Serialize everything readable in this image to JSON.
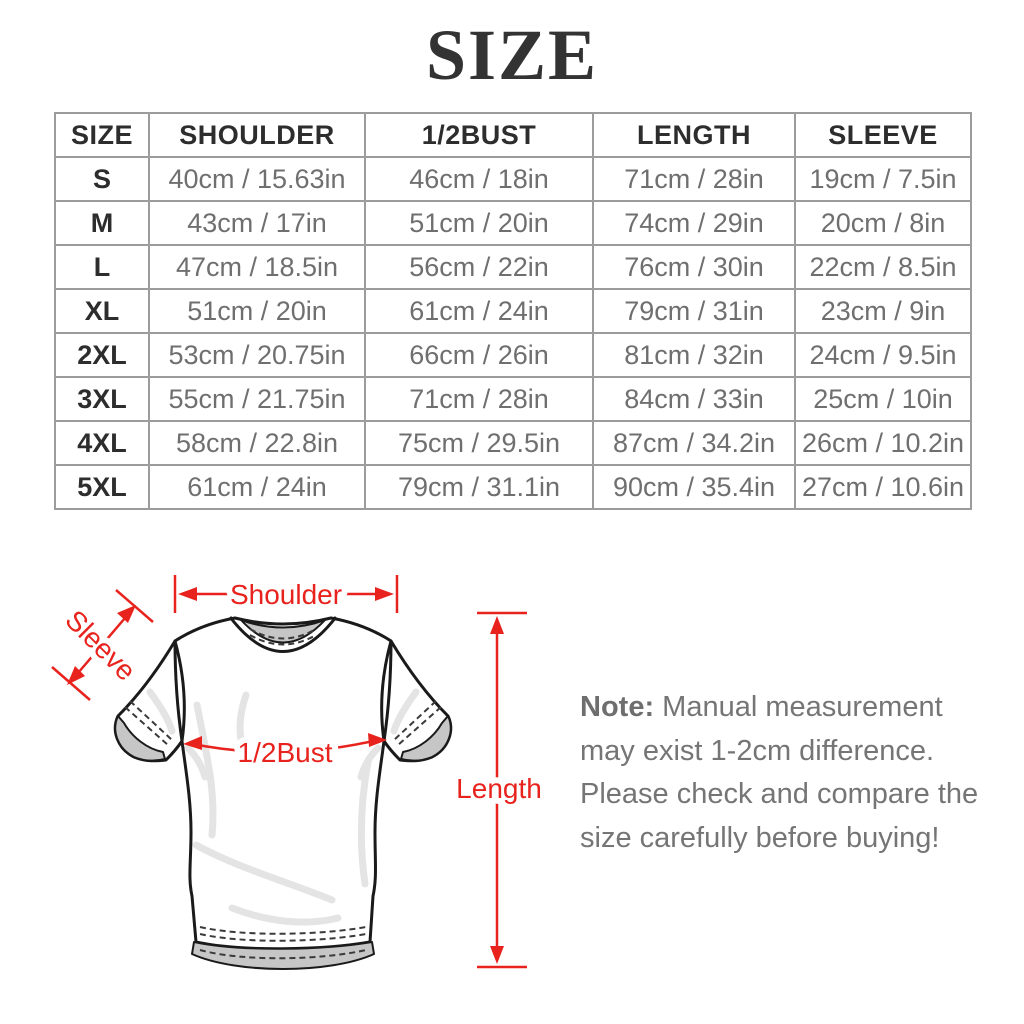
{
  "title": "SIZE",
  "table": {
    "headers": [
      "SIZE",
      "SHOULDER",
      "1/2BUST",
      "LENGTH",
      "SLEEVE"
    ],
    "rows": [
      [
        "S",
        "40cm / 15.63in",
        "46cm / 18in",
        "71cm / 28in",
        "19cm / 7.5in"
      ],
      [
        "M",
        "43cm / 17in",
        "51cm / 20in",
        "74cm / 29in",
        "20cm / 8in"
      ],
      [
        "L",
        "47cm / 18.5in",
        "56cm / 22in",
        "76cm / 30in",
        "22cm / 8.5in"
      ],
      [
        "XL",
        "51cm / 20in",
        "61cm / 24in",
        "79cm / 31in",
        "23cm / 9in"
      ],
      [
        "2XL",
        "53cm / 20.75in",
        "66cm / 26in",
        "81cm / 32in",
        "24cm / 9.5in"
      ],
      [
        "3XL",
        "55cm / 21.75in",
        "71cm / 28in",
        "84cm / 33in",
        "25cm / 10in"
      ],
      [
        "4XL",
        "58cm / 22.8in",
        "75cm / 29.5in",
        "87cm / 34.2in",
        "26cm / 10.2in"
      ],
      [
        "5XL",
        "61cm / 24in",
        "79cm / 31.1in",
        "90cm / 35.4in",
        "27cm / 10.6in"
      ]
    ]
  },
  "diagram": {
    "labels": {
      "shoulder": "Shoulder",
      "sleeve": "Sleeve",
      "bust": "1/2Bust",
      "length": "Length"
    },
    "accent_color": "#e8231d"
  },
  "note": {
    "label": "Note:",
    "text": " Manual measurement may exist 1-2cm difference. Please check and compare the size carefully before buying!"
  }
}
